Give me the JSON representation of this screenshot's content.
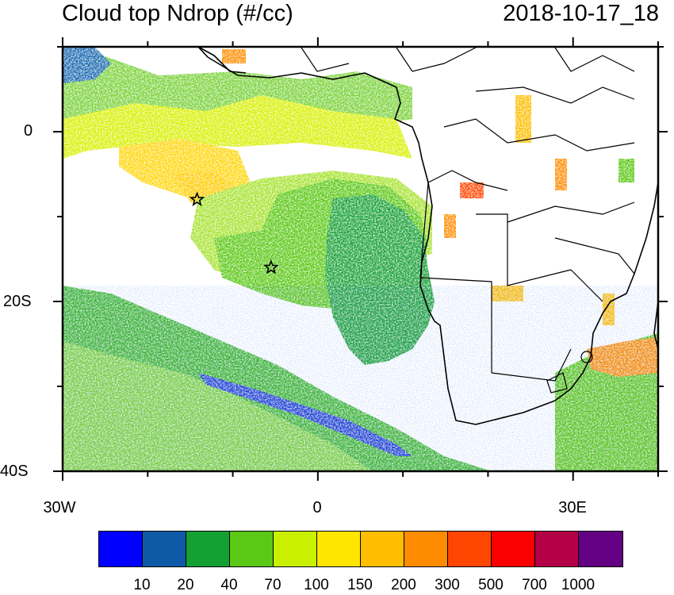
{
  "header": {
    "title": "Cloud top Ndrop (#/cc)",
    "datetime": "2018-10-17_18"
  },
  "axes": {
    "lat_labels": [
      "0",
      "20S",
      "40S"
    ],
    "lon_labels": [
      "30W",
      "0",
      "30E"
    ]
  },
  "map": {
    "region": "Southeast Atlantic and southern Africa",
    "lon_range": [
      -30,
      40
    ],
    "lat_range": [
      -40,
      10
    ],
    "markers": [
      {
        "name": "star-1",
        "lon": -14.2,
        "lat": -8.0,
        "symbol": "star"
      },
      {
        "name": "star-2",
        "lon": -5.5,
        "lat": -16.0,
        "symbol": "star"
      }
    ]
  },
  "colorbar": {
    "labels": [
      "10",
      "20",
      "40",
      "70",
      "100",
      "150",
      "200",
      "300",
      "500",
      "700",
      "1000"
    ],
    "colors": [
      "#0000ff",
      "#0f5aa6",
      "#14a032",
      "#5ac814",
      "#c8f000",
      "#ffe600",
      "#ffbe00",
      "#ff8c00",
      "#ff4600",
      "#fa0000",
      "#b40046",
      "#640082"
    ]
  }
}
